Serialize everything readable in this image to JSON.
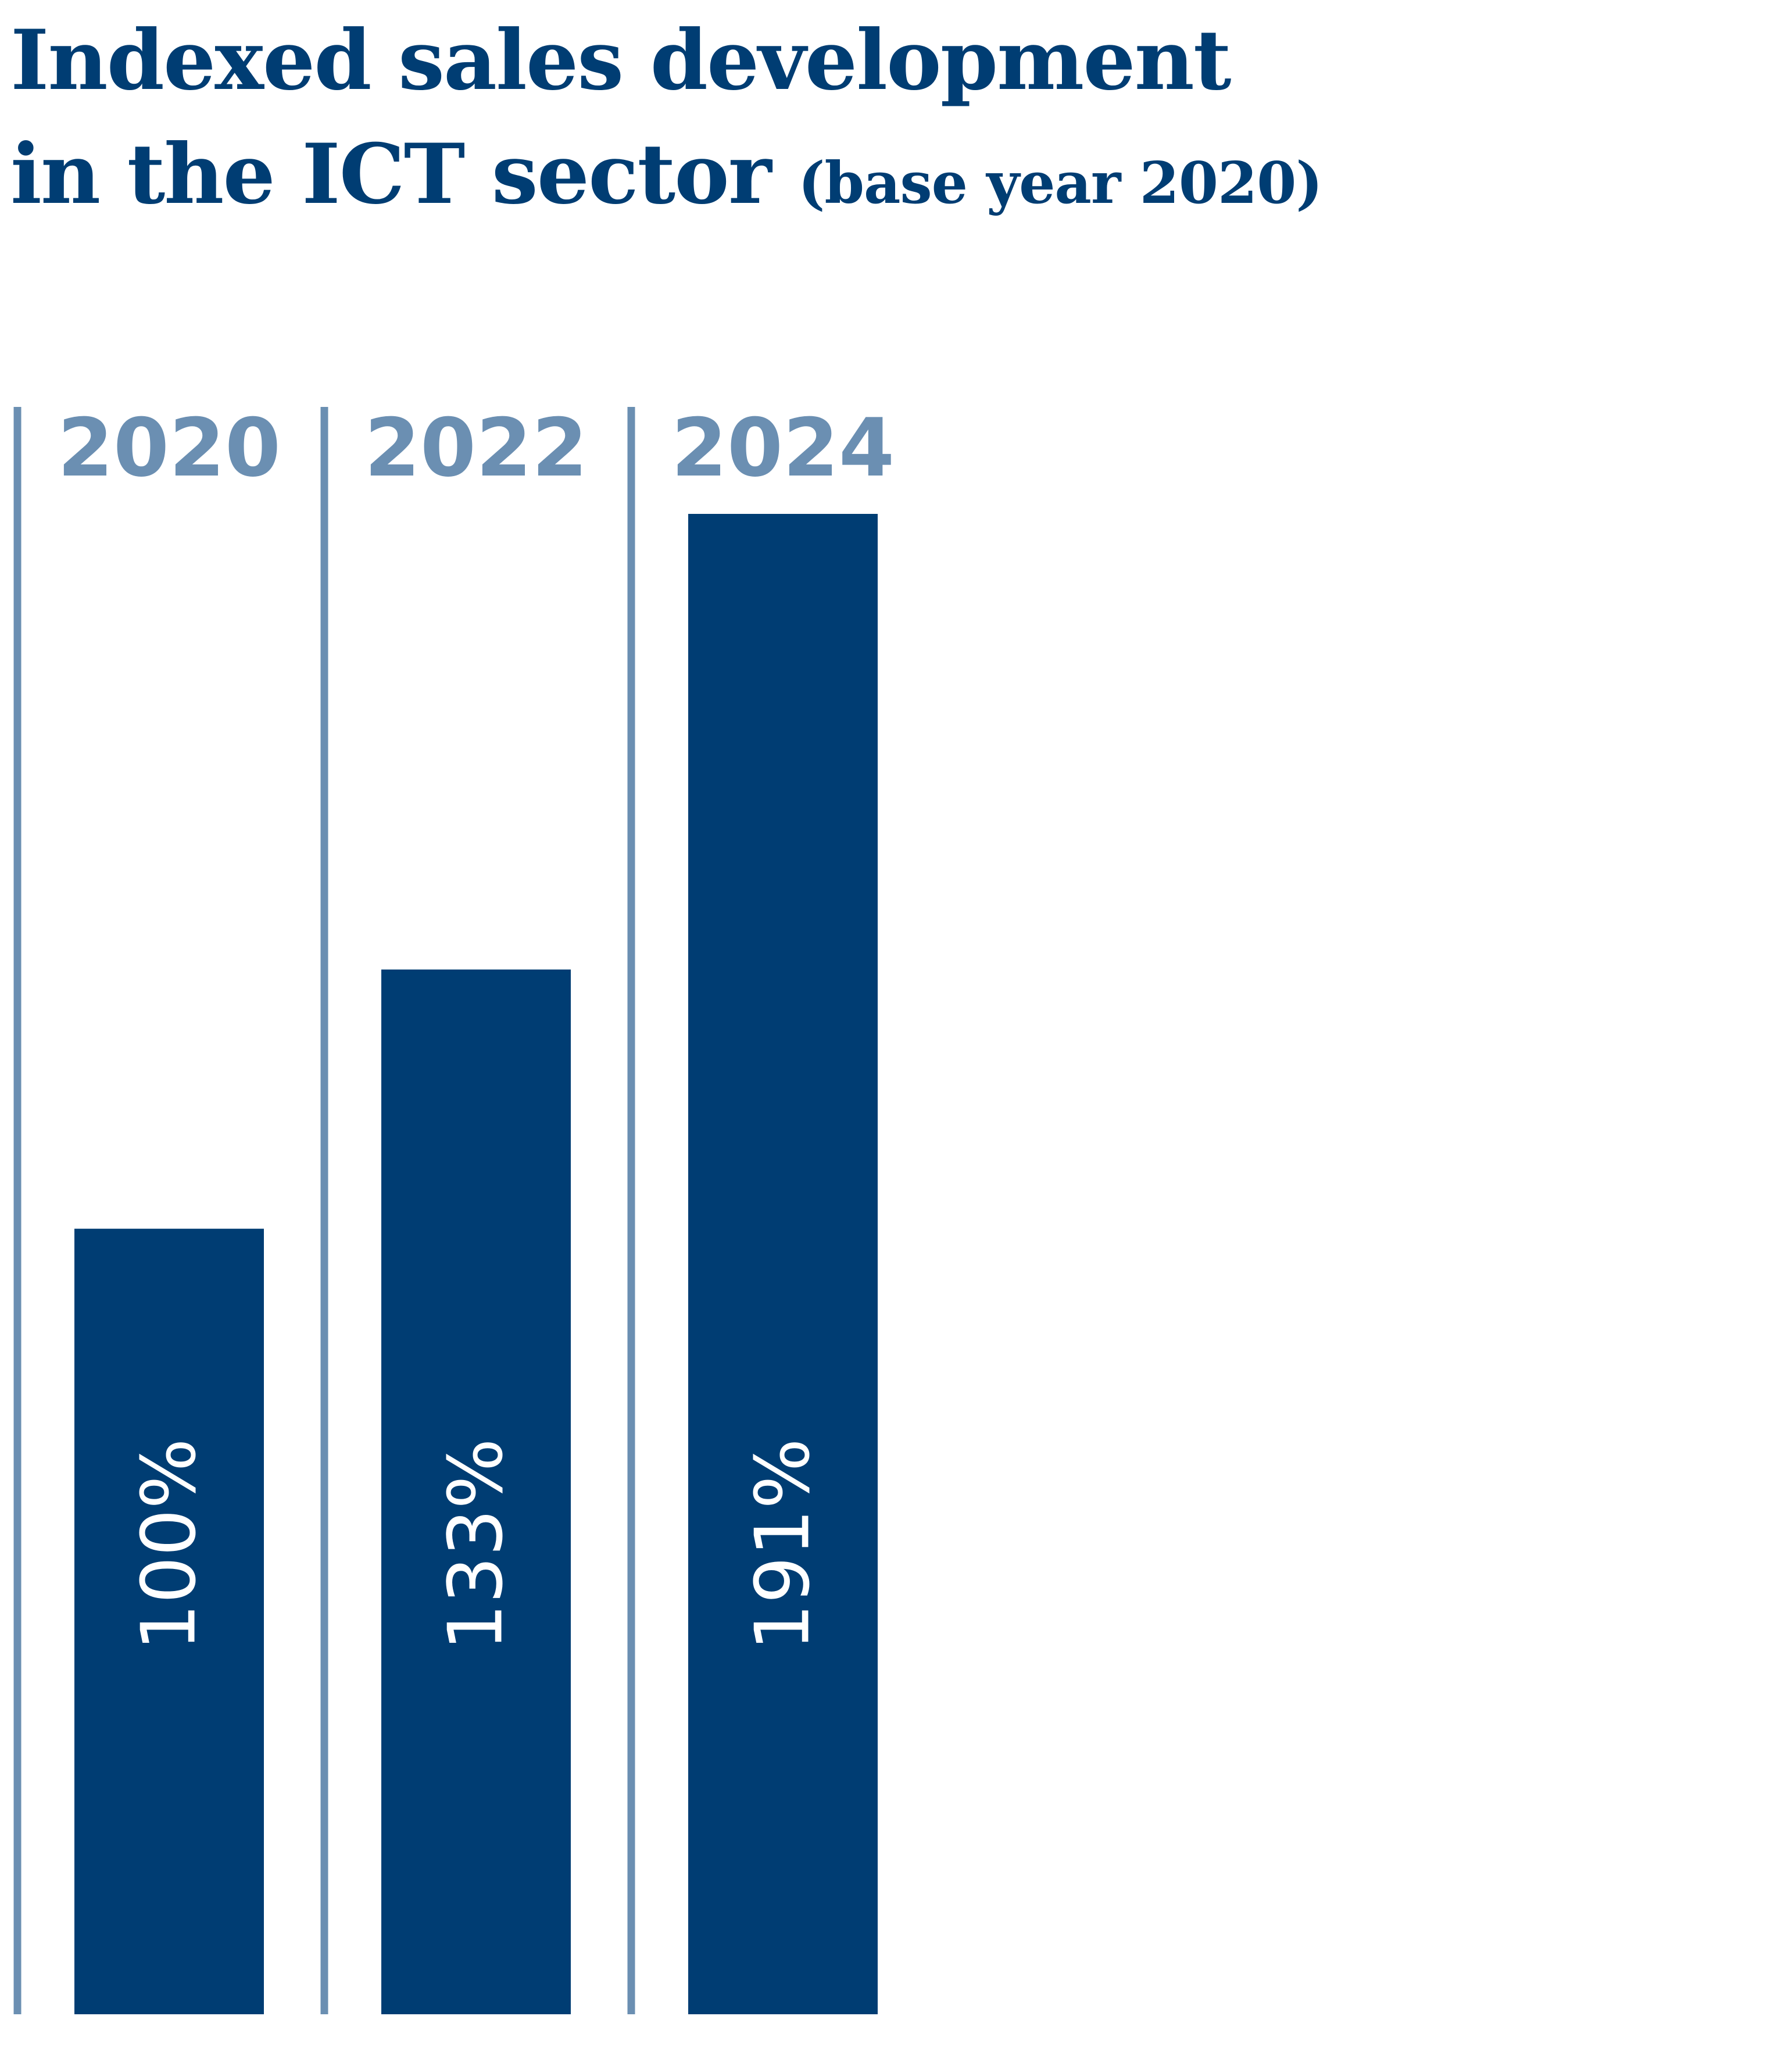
{
  "title": {
    "line1": "Indexed sales development",
    "line2": "in the ICT sector",
    "note": "(base year 2020)"
  },
  "colors": {
    "bar": "#003d73",
    "divider": "#6b8fb2",
    "title": "#003d73",
    "value_text": "#ffffff"
  },
  "chart_data": {
    "type": "bar",
    "title": "Indexed sales development in the ICT sector (base year 2020)",
    "categories": [
      "2020",
      "2022",
      "2024"
    ],
    "values": [
      100,
      133,
      191
    ],
    "value_labels": [
      "100%",
      "133%",
      "191%"
    ],
    "ylim": [
      0,
      191
    ],
    "value_label_orientation": "vertical",
    "category_label_position": "top",
    "grid": false,
    "legend": "none"
  }
}
